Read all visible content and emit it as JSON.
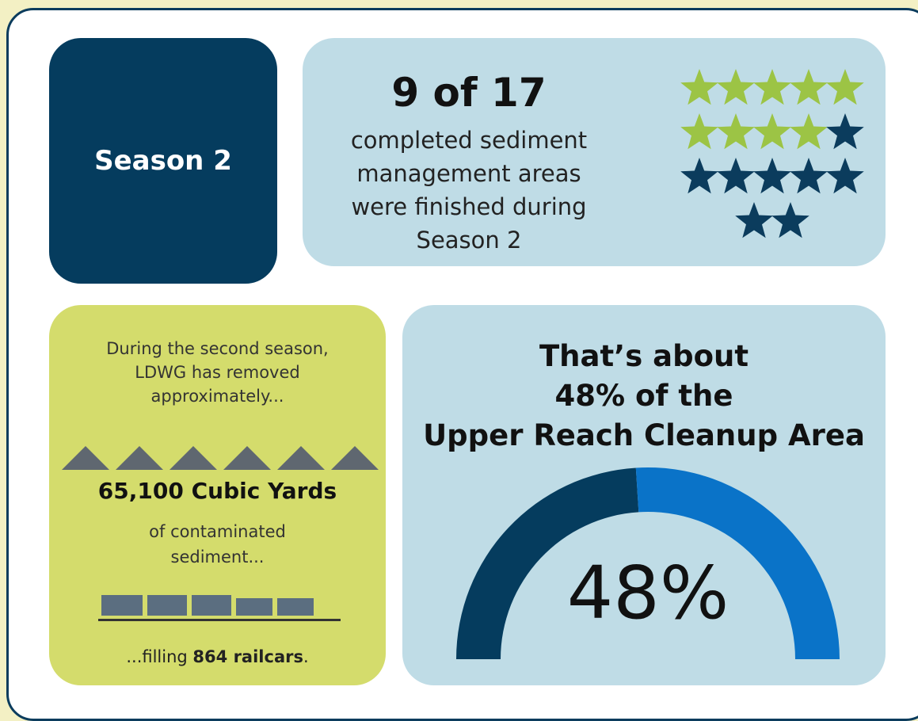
{
  "season_card": {
    "label": "Season 2"
  },
  "areas_card": {
    "headline": "9 of 17",
    "description_lines": [
      "completed sediment",
      "management areas",
      "were finished during",
      "Season 2"
    ],
    "stars": {
      "completed": 9,
      "total": 17
    }
  },
  "removal_card": {
    "intro_lines": [
      "During the second season,",
      "LDWG has removed",
      "approximately..."
    ],
    "amount": "65,100 Cubic Yards",
    "detail_lines": [
      "of contaminated",
      "sediment..."
    ],
    "footer": {
      "prefix": "...filling ",
      "emphasis": "864 railcars",
      "suffix": "."
    }
  },
  "share_card": {
    "title_lines": [
      "That’s about",
      "48% of the",
      "Upper Reach Cleanup Area"
    ],
    "gauge": {
      "value": 48,
      "label": "48%"
    }
  }
}
